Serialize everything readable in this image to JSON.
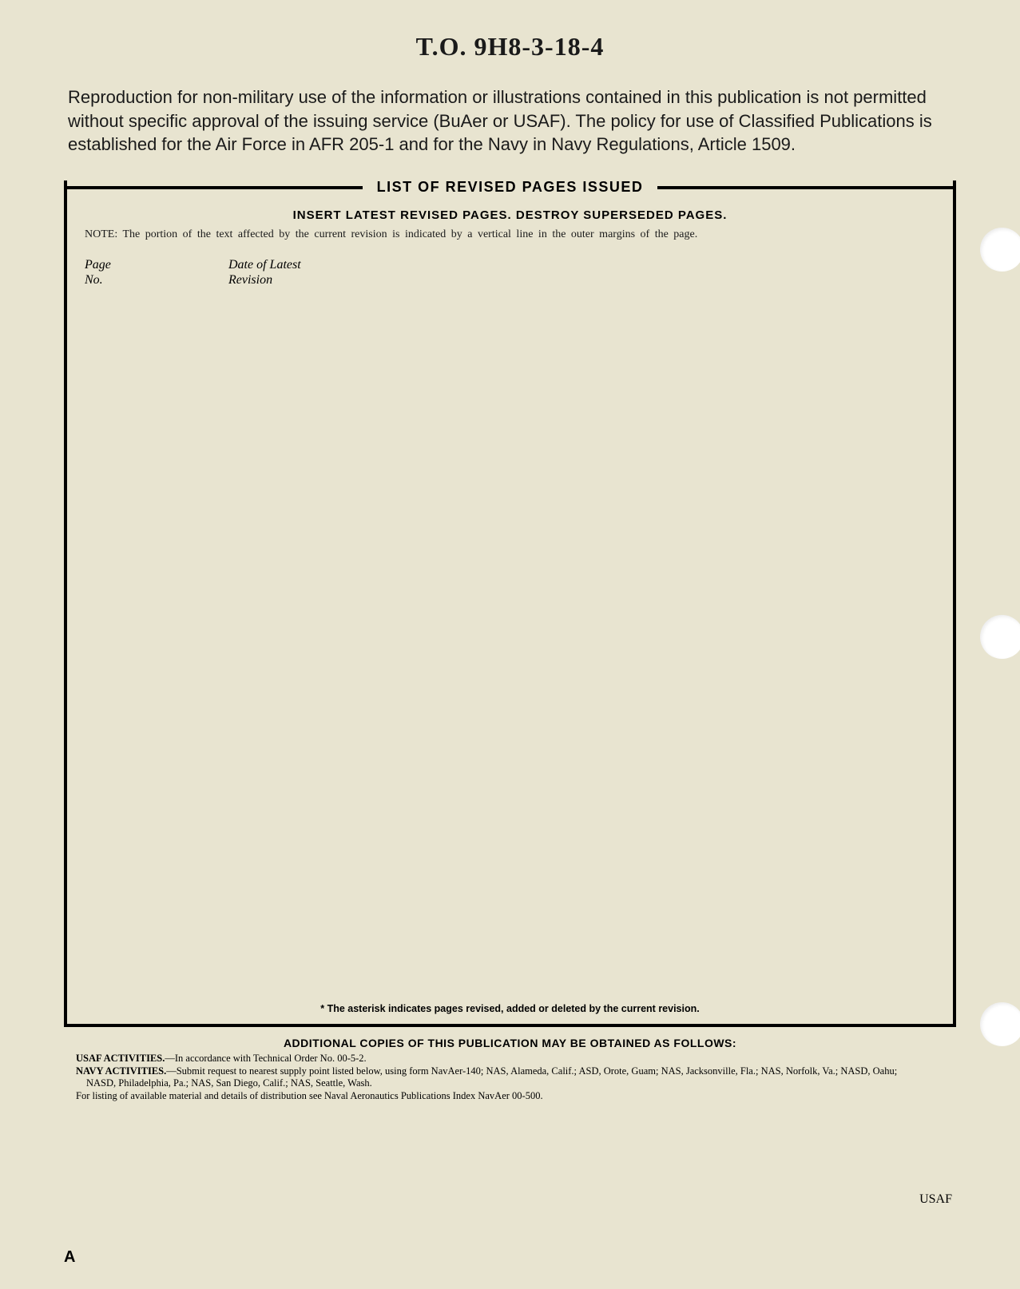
{
  "document": {
    "number": "T.O. 9H8-3-18-4",
    "intro_paragraph": "Reproduction for non-military use of the information or illustrations contained in this publication is not permitted without specific approval of the issuing service (BuAer or USAF). The policy for use of Classified Publications is established for the Air Force in AFR 205-1 and for the Navy in Navy Regulations, Article 1509."
  },
  "revision_box": {
    "title": "LIST OF REVISED PAGES ISSUED",
    "subtitle": "INSERT LATEST REVISED PAGES. DESTROY SUPERSEDED PAGES.",
    "note_label": "NOTE:",
    "note_text": "The portion of the text affected by the current revision is indicated by a vertical line in the outer margins of the page.",
    "col_page_line1": "Page",
    "col_page_line2": "No.",
    "col_date_line1": "Date of Latest",
    "col_date_line2": "Revision",
    "asterisk_note": "* The asterisk indicates pages revised, added or deleted by the current revision."
  },
  "footer": {
    "additional_title": "ADDITIONAL COPIES OF THIS PUBLICATION MAY BE OBTAINED AS FOLLOWS:",
    "usaf_label": "USAF ACTIVITIES.",
    "usaf_text": "—In accordance with Technical Order No. 00-5-2.",
    "navy_label": "NAVY ACTIVITIES.",
    "navy_text": "—Submit request to nearest supply point listed below, using form NavAer-140; NAS, Alameda, Calif.; ASD, Orote, Guam; NAS, Jacksonville, Fla.; NAS, Norfolk, Va.; NASD, Oahu; NASD, Philadelphia, Pa.; NAS, San Diego, Calif.; NAS, Seattle, Wash.",
    "listing_text": "For listing of available material and details of distribution see Naval Aeronautics Publications Index NavAer 00-500.",
    "usaf_mark": "USAF",
    "page_letter": "A"
  },
  "styling": {
    "background_color": "#e8e4d0",
    "text_color": "#1a1a1a",
    "border_color": "#000000",
    "hole_color": "#ffffff",
    "title_fontsize": 32,
    "body_fontsize": 22,
    "box_title_fontsize": 18,
    "footer_fontsize": 12.5
  }
}
